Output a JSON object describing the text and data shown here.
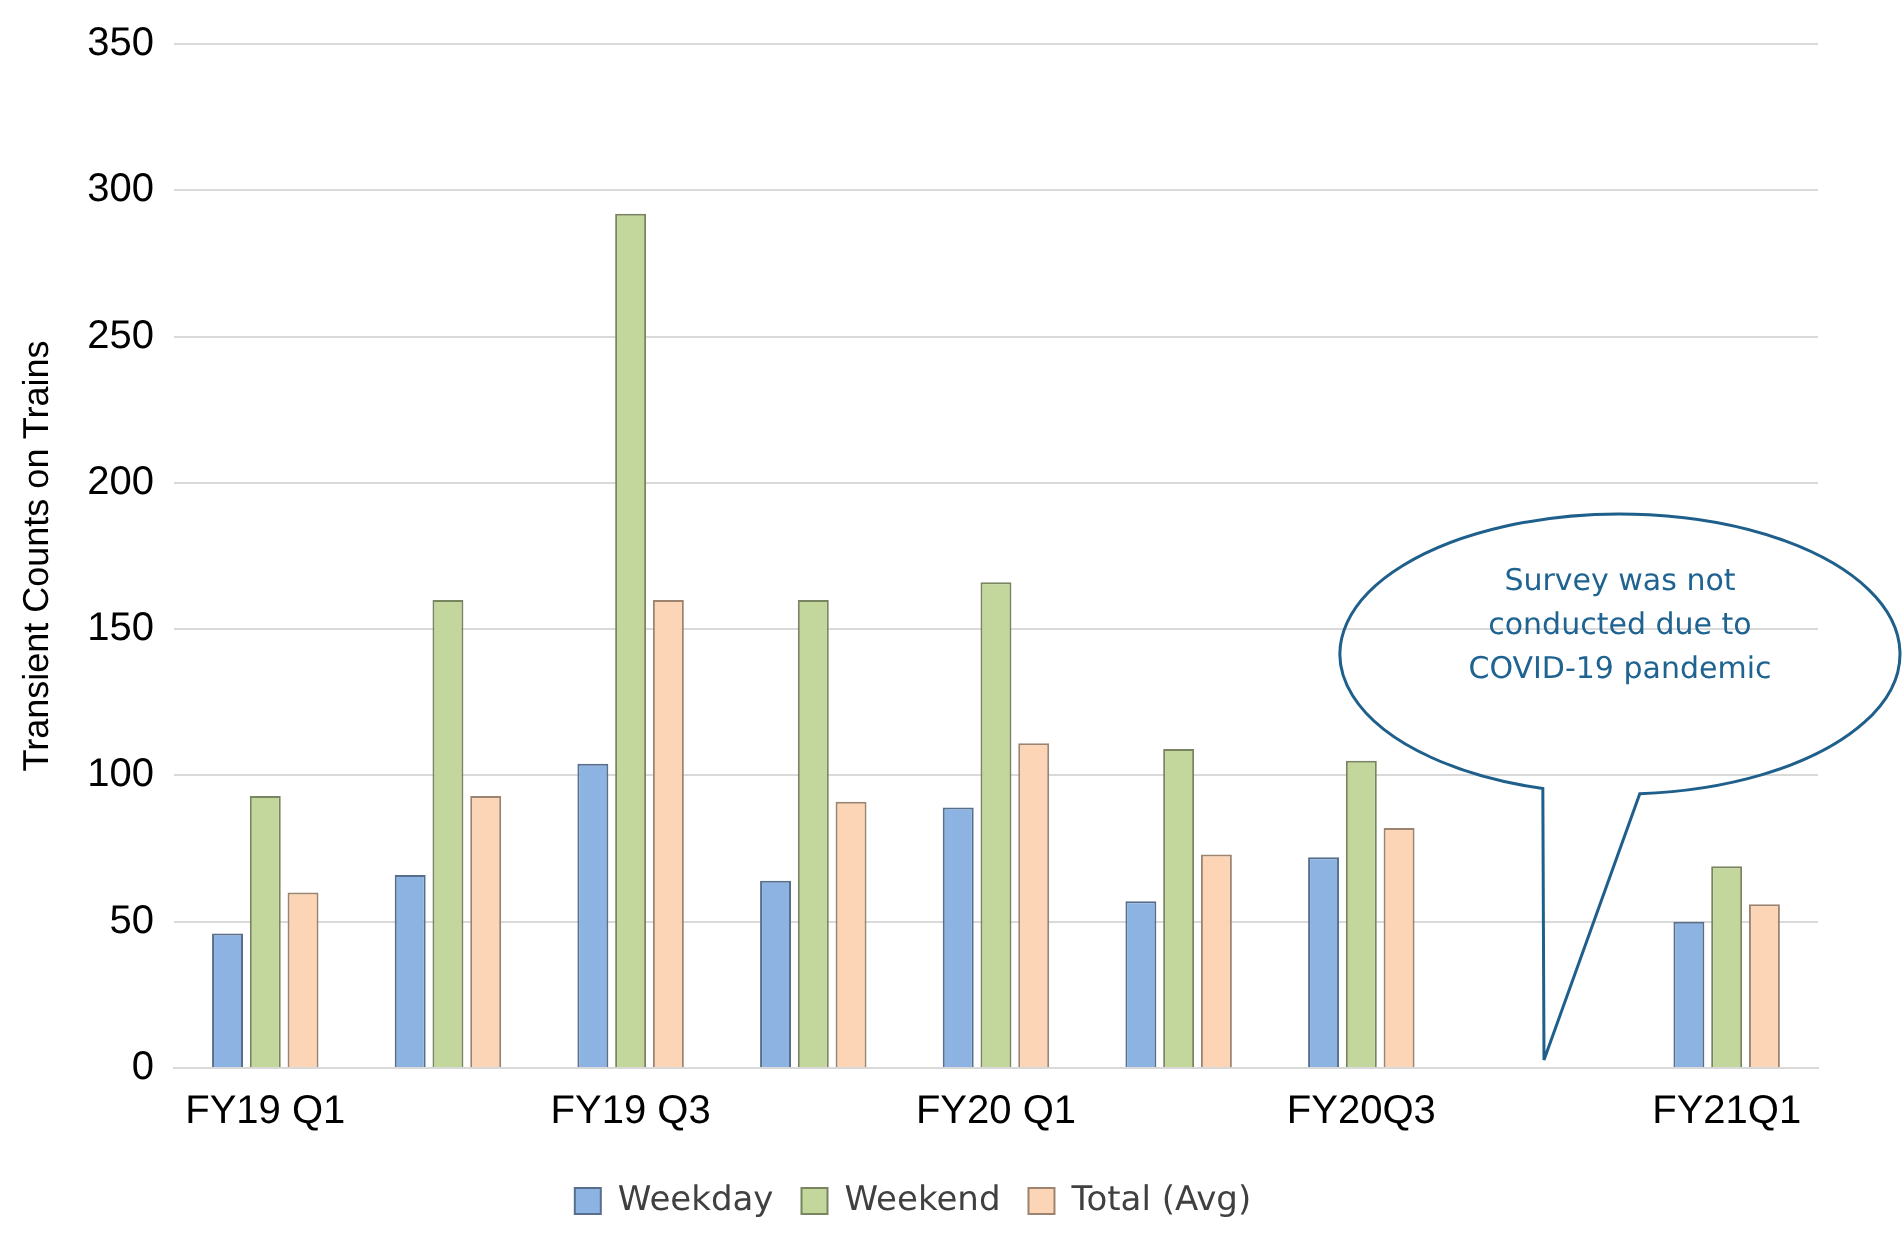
{
  "chart_data": {
    "type": "bar",
    "ylabel": "Transient Counts on Trains",
    "categories": [
      "FY19 Q1",
      null,
      "FY19 Q3",
      null,
      "FY20 Q1",
      null,
      "FY20Q3",
      null,
      "FY21Q1"
    ],
    "series": [
      {
        "name": "Weekday",
        "color": "#8db3e2",
        "values": [
          46,
          66,
          104,
          64,
          89,
          57,
          72,
          null,
          50
        ]
      },
      {
        "name": "Weekend",
        "color": "#c3d69b",
        "values": [
          93,
          160,
          292,
          160,
          166,
          109,
          105,
          null,
          69
        ]
      },
      {
        "name": "Total (Avg)",
        "color": "#fbd5b5",
        "values": [
          60,
          93,
          160,
          91,
          111,
          73,
          82,
          null,
          56
        ]
      }
    ],
    "ylim": [
      0,
      350
    ],
    "yticks": [
      0,
      50,
      100,
      150,
      200,
      250,
      300,
      350
    ],
    "grid": "y",
    "legend": "bottom",
    "annotations": [
      "Survey was not conducted due to COVID-19 pandemic"
    ]
  }
}
